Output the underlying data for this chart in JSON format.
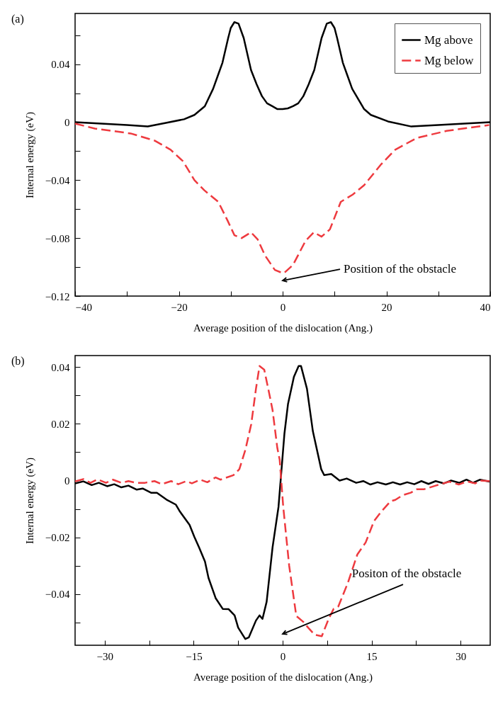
{
  "chart_data": [
    {
      "type": "line",
      "xlabel": "Average position of the dislocation (Ang.)",
      "ylabel": "Internal energy (eV)",
      "xlim": [
        -40,
        40
      ],
      "ylim": [
        -0.12,
        0.075
      ],
      "xticks": [
        {
          "value": -40,
          "label": "−40"
        },
        {
          "value": -30,
          "label": null
        },
        {
          "value": -20,
          "label": "−20"
        },
        {
          "value": -10,
          "label": null
        },
        0,
        {
          "value": 10,
          "label": null
        },
        20,
        {
          "value": 30,
          "label": null
        },
        40
      ],
      "yticks": [
        {
          "value": -0.12,
          "label": "−0.12"
        },
        {
          "value": -0.1,
          "label": null
        },
        {
          "value": -0.08,
          "label": "−0.08"
        },
        {
          "value": -0.06,
          "label": null
        },
        {
          "value": -0.04,
          "label": "−0.04"
        },
        {
          "value": -0.02,
          "label": null
        },
        0,
        {
          "value": 0.02,
          "label": null
        },
        0.04,
        {
          "value": 0.06,
          "label": null
        }
      ],
      "grid": false,
      "legend": "top right",
      "marker": "none",
      "annotations": [
        "(a)",
        "Position of the obstacle"
      ],
      "series": [
        {
          "name": "Mg above",
          "color": "#000000",
          "line_style": "solid",
          "x": [
            -40,
            -35,
            -30,
            -26,
            -22.5,
            -19,
            -17,
            -15,
            -13.4,
            -12.5,
            -11.6,
            -10.5,
            -10,
            -9.3,
            -8.5,
            -7.5,
            -6.1,
            -5,
            -4,
            -3,
            -2,
            -1,
            0,
            1,
            2,
            3,
            4,
            5,
            6.1,
            7.5,
            8.5,
            9.3,
            10,
            10.5,
            11.6,
            12.5,
            13.4,
            15.7,
            17,
            20.3,
            24.8,
            30,
            35,
            40
          ],
          "values": [
            0,
            -0.001,
            -0.002,
            -0.003,
            -0.0005,
            0.002,
            0.005,
            0.011,
            0.023,
            0.032,
            0.041,
            0.058,
            0.065,
            0.069,
            0.068,
            0.058,
            0.036,
            0.026,
            0.018,
            0.013,
            0.011,
            0.009,
            0.009,
            0.0095,
            0.011,
            0.013,
            0.018,
            0.026,
            0.036,
            0.058,
            0.068,
            0.069,
            0.065,
            0.058,
            0.041,
            0.032,
            0.023,
            0.009,
            0.005,
            0.0005,
            -0.003,
            -0.002,
            -0.001,
            0
          ]
        },
        {
          "name": "Mg below",
          "color": "#ee3a3f",
          "line_style": "dashed",
          "x": [
            -40,
            -36.2,
            -29.3,
            -24.7,
            -21.6,
            -19.2,
            -17,
            -15.1,
            -12.4,
            -10.6,
            -9.3,
            -7.9,
            -6.1,
            -4.8,
            -3.4,
            -1.5,
            -0.1,
            0.3,
            2,
            4.4,
            6,
            7.5,
            9.1,
            11.2,
            13.5,
            15.7,
            19,
            21.7,
            25.8,
            31.6,
            39.8
          ],
          "values": [
            -0.001,
            -0.0044,
            -0.0078,
            -0.0127,
            -0.019,
            -0.027,
            -0.04,
            -0.047,
            -0.055,
            -0.068,
            -0.078,
            -0.08,
            -0.076,
            -0.081,
            -0.092,
            -0.102,
            -0.104,
            -0.104,
            -0.0985,
            -0.082,
            -0.076,
            -0.079,
            -0.074,
            -0.055,
            -0.05,
            -0.0435,
            -0.029,
            -0.019,
            -0.011,
            -0.006,
            -0.002
          ]
        }
      ]
    },
    {
      "type": "line",
      "xlabel": "Average position of the dislocation (Ang.)",
      "ylabel": "Internal energy (eV)",
      "xlim": [
        -35,
        35
      ],
      "ylim": [
        -0.058,
        0.044
      ],
      "xticks": [
        {
          "value": -30,
          "label": "−30"
        },
        {
          "value": -22.5,
          "label": null
        },
        {
          "value": -15,
          "label": "−15"
        },
        {
          "value": -7.5,
          "label": null
        },
        0,
        {
          "value": 7.5,
          "label": null
        },
        15,
        {
          "value": 22.5,
          "label": null
        },
        30
      ],
      "yticks": [
        {
          "value": -0.05,
          "label": null
        },
        {
          "value": -0.04,
          "label": "−0.04"
        },
        {
          "value": -0.03,
          "label": null
        },
        {
          "value": -0.02,
          "label": "−0.02"
        },
        {
          "value": -0.01,
          "label": null
        },
        0,
        {
          "value": 0.01,
          "label": null
        },
        0.02,
        {
          "value": 0.03,
          "label": null
        },
        0.04
      ],
      "grid": false,
      "legend": "top right",
      "marker": "none",
      "annotations": [
        "(b)",
        "Positon of the obstacle"
      ],
      "series": [
        {
          "name": "Mg above",
          "color": "#000000",
          "line_style": "solid",
          "x": [
            -35,
            -33.6,
            -32.2,
            -31,
            -29.6,
            -28.4,
            -27.2,
            -26,
            -24.6,
            -23.6,
            -22.2,
            -21.2,
            -19.6,
            -18,
            -17.3,
            -15.7,
            -14.9,
            -14.1,
            -13.1,
            -12.5,
            -11.3,
            -10.1,
            -9.1,
            -8.1,
            -7.5,
            -6.3,
            -5.7,
            -4.5,
            -3.9,
            -3.4,
            -2.7,
            -1.7,
            -0.7,
            0.3,
            0.9,
            1.9,
            2.7,
            3.1,
            4.1,
            5.1,
            6.5,
            7,
            8.2,
            9.6,
            10.8,
            12.4,
            13.6,
            14.8,
            16,
            17.4,
            18.6,
            19.8,
            21,
            22.2,
            23.4,
            24.6,
            25.8,
            27.2,
            28.4,
            29.8,
            31,
            32.1,
            33.3,
            34.9
          ],
          "values": [
            -0.001,
            -0.0003,
            -0.0016,
            -0.0008,
            -0.002,
            -0.0013,
            -0.0024,
            -0.0018,
            -0.0032,
            -0.0028,
            -0.0043,
            -0.0043,
            -0.0067,
            -0.0085,
            -0.011,
            -0.0156,
            -0.0198,
            -0.0235,
            -0.0285,
            -0.0343,
            -0.0414,
            -0.0452,
            -0.0453,
            -0.0475,
            -0.0518,
            -0.0558,
            -0.0552,
            -0.0493,
            -0.0475,
            -0.0487,
            -0.0427,
            -0.0235,
            -0.0093,
            0.0165,
            0.0269,
            0.0365,
            0.0403,
            0.0403,
            0.0323,
            0.0173,
            0.004,
            0.0019,
            0.0023,
            0,
            0.0007,
            -0.0008,
            -0.0002,
            -0.0014,
            -0.0006,
            -0.0014,
            -0.0006,
            -0.0014,
            -0.0006,
            -0.0013,
            -0.0002,
            -0.0012,
            -0.0002,
            -0.001,
            0,
            -0.0008,
            0.0003,
            -0.0008,
            0.0003,
            -0.0004
          ]
        },
        {
          "name": "Mg below",
          "color": "#ee3a3f",
          "line_style": "dashed",
          "x": [
            -35,
            -33.6,
            -32.4,
            -31.2,
            -29.8,
            -28.6,
            -27.2,
            -26,
            -24.8,
            -23.2,
            -21.6,
            -20.4,
            -18.8,
            -17.6,
            -16.2,
            -15.3,
            -13.9,
            -12.7,
            -11.3,
            -10.5,
            -8.3,
            -7.3,
            -6.3,
            -5.3,
            -4.5,
            -3.9,
            -3.1,
            -2.1,
            -1.7,
            -0.9,
            -0.5,
            0.1,
            1.1,
            2.3,
            3.5,
            4.3,
            5.4,
            6.6,
            7.8,
            8.6,
            9.4,
            11,
            12.6,
            14,
            15.4,
            16.6,
            18.2,
            19,
            20.2,
            21.6,
            22.6,
            23.8,
            25.8,
            28.1,
            29.7,
            31.1,
            32.5,
            33.3,
            34.9
          ],
          "values": [
            -0.0003,
            0.0005,
            -0.0008,
            0.0004,
            -0.0008,
            0.0003,
            -0.0008,
            -0.0002,
            -0.0008,
            -0.0008,
            -0.0002,
            -0.0013,
            -0.0002,
            -0.0013,
            -0.0002,
            -0.001,
            0.0003,
            -0.0006,
            0.0011,
            0.0003,
            0.0019,
            0.004,
            0.0107,
            0.0198,
            0.0323,
            0.0403,
            0.039,
            0.029,
            0.0248,
            0.0115,
            0.0073,
            -0.0093,
            -0.03,
            -0.0477,
            -0.0498,
            -0.0518,
            -0.0543,
            -0.0548,
            -0.0485,
            -0.0452,
            -0.0443,
            -0.036,
            -0.026,
            -0.0218,
            -0.0143,
            -0.011,
            -0.0073,
            -0.0068,
            -0.0052,
            -0.0043,
            -0.0031,
            -0.0031,
            -0.0018,
            -0.0004,
            -0.0014,
            -0.0003,
            -0.001,
            0,
            -0.0002
          ]
        }
      ]
    }
  ]
}
